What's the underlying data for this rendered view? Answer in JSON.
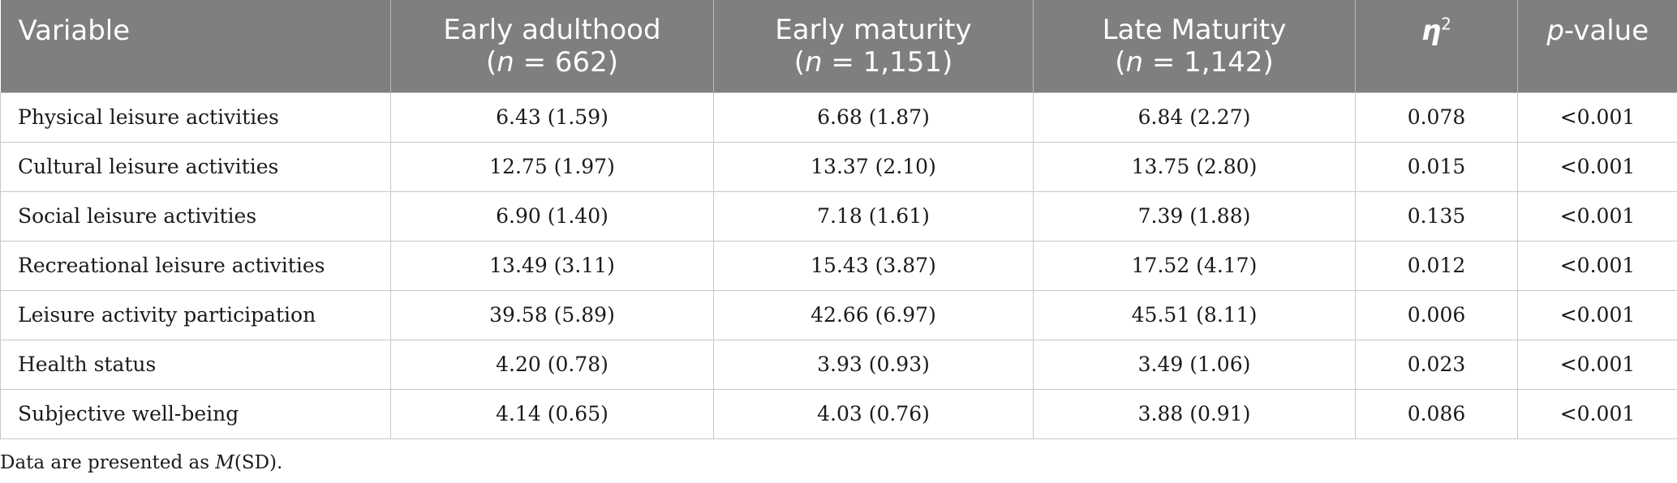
{
  "table": {
    "header": {
      "variable": "Variable",
      "groups": [
        {
          "name": "Early adulthood",
          "n_prefix": "(",
          "n_var": "n",
          "n_value": " = 662)"
        },
        {
          "name": "Early maturity",
          "n_prefix": "(",
          "n_var": "n",
          "n_value": " = 1,151)"
        },
        {
          "name": "Late Maturity",
          "n_prefix": "(",
          "n_var": "n",
          "n_value": " = 1,142)"
        }
      ],
      "eta_symbol": "η",
      "eta_exp": "2",
      "pvalue_var": "p",
      "pvalue_suffix": "-value"
    },
    "rows": [
      {
        "variable": "Physical leisure activities",
        "early_adulthood": "6.43 (1.59)",
        "early_maturity": "6.68 (1.87)",
        "late_maturity": "6.84 (2.27)",
        "eta2": "0.078",
        "p": "<0.001"
      },
      {
        "variable": "Cultural leisure activities",
        "early_adulthood": "12.75 (1.97)",
        "early_maturity": "13.37 (2.10)",
        "late_maturity": "13.75 (2.80)",
        "eta2": "0.015",
        "p": "<0.001"
      },
      {
        "variable": "Social leisure activities",
        "early_adulthood": "6.90 (1.40)",
        "early_maturity": "7.18 (1.61)",
        "late_maturity": "7.39 (1.88)",
        "eta2": "0.135",
        "p": "<0.001"
      },
      {
        "variable": "Recreational leisure activities",
        "early_adulthood": "13.49 (3.11)",
        "early_maturity": "15.43 (3.87)",
        "late_maturity": "17.52 (4.17)",
        "eta2": "0.012",
        "p": "<0.001"
      },
      {
        "variable": "Leisure activity participation",
        "early_adulthood": "39.58 (5.89)",
        "early_maturity": "42.66 (6.97)",
        "late_maturity": "45.51 (8.11)",
        "eta2": "0.006",
        "p": "<0.001"
      },
      {
        "variable": "Health status",
        "early_adulthood": "4.20 (0.78)",
        "early_maturity": "3.93 (0.93)",
        "late_maturity": "3.49 (1.06)",
        "eta2": "0.023",
        "p": "<0.001"
      },
      {
        "variable": "Subjective well-being",
        "early_adulthood": "4.14 (0.65)",
        "early_maturity": "4.03 (0.76)",
        "late_maturity": "3.88 (0.91)",
        "eta2": "0.086",
        "p": "<0.001"
      }
    ],
    "note": {
      "prefix": "Data are presented as ",
      "m": "M",
      "suffix": "(SD)."
    }
  }
}
